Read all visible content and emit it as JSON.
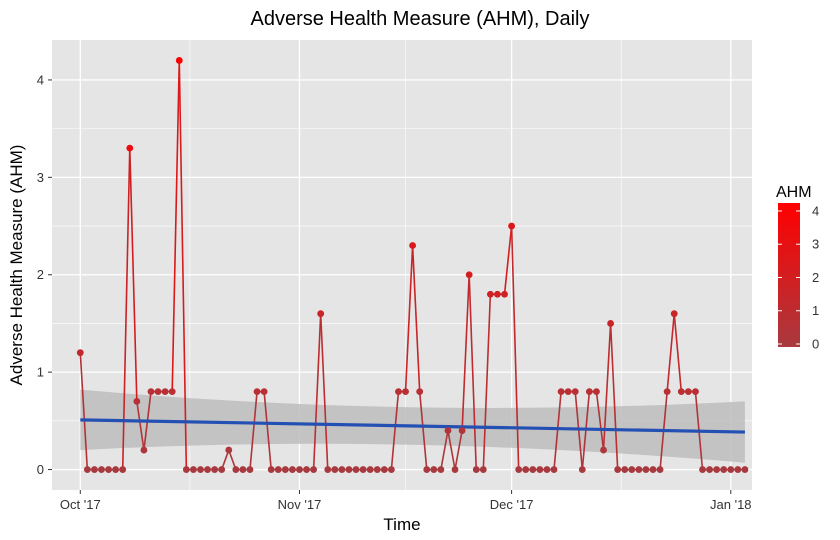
{
  "chart_data": {
    "type": "line",
    "title": "Adverse Health Measure (AHM), Daily",
    "xlabel": "Time",
    "ylabel": "Adverse Health Measure (AHM)",
    "x_start": "2017-10-01",
    "x_ticks": [
      {
        "label": "Oct '17",
        "date": "2017-10-01"
      },
      {
        "label": "Nov '17",
        "date": "2017-11-01"
      },
      {
        "label": "Dec '17",
        "date": "2017-12-01"
      },
      {
        "label": "Jan '18",
        "date": "2018-01-01"
      }
    ],
    "y_ticks": [
      0,
      1,
      2,
      3,
      4
    ],
    "ylim": [
      -0.21,
      4.41
    ],
    "xlim": [
      "2017-09-27",
      "2018-01-04"
    ],
    "grid": true,
    "series": [
      {
        "values": [
          1.2,
          0,
          0,
          0,
          0,
          0,
          0,
          3.3,
          0.7,
          0.2,
          0.8,
          0.8,
          0.8,
          0.8,
          4.2,
          0,
          0,
          0,
          0,
          0,
          0,
          0.2,
          0,
          0,
          0,
          0.8,
          0.8,
          0,
          0,
          0,
          0,
          0,
          0,
          0,
          1.6,
          0,
          0,
          0,
          0,
          0,
          0,
          0,
          0,
          0,
          0,
          0.8,
          0.8,
          2.3,
          0.8,
          0,
          0,
          0,
          0.4,
          0,
          0.4,
          2.0,
          0,
          0,
          1.8,
          1.8,
          1.8,
          2.5,
          0,
          0,
          0,
          0,
          0,
          0,
          0.8,
          0.8,
          0.8,
          0,
          0.8,
          0.8,
          0.2,
          1.5,
          0,
          0,
          0,
          0,
          0,
          0,
          0,
          0.8,
          1.6,
          0.8,
          0.8,
          0.8,
          0,
          0,
          0,
          0,
          0,
          0,
          0
        ]
      }
    ],
    "trend": {
      "start": 0.51,
      "end": 0.385,
      "band_start": [
        0.2,
        0.82
      ],
      "band_end": [
        0.07,
        0.7
      ]
    },
    "legend": {
      "title": "AHM",
      "position": "right",
      "labels": [
        "4",
        "3",
        "2",
        "1",
        "0"
      ],
      "color_low": "#a83a3f",
      "color_high": "#ff0000"
    },
    "colors": {
      "panel": "#e5e5e5",
      "grid": "#ffffff",
      "trend": "#2450b4",
      "band": "#bdbdbd"
    }
  }
}
